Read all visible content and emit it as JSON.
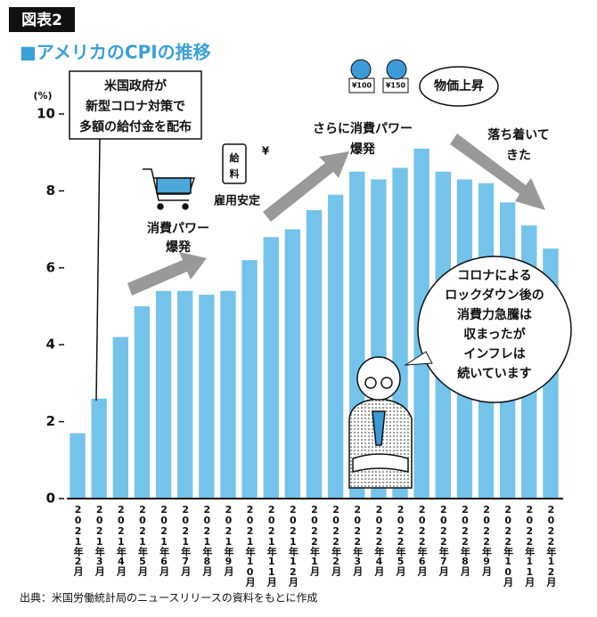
{
  "tag": "図表2",
  "chart_data": {
    "type": "bar",
    "title": "■アメリカのCPIの推移",
    "y_unit": "(%)",
    "categories": [
      "2021年2月",
      "2021年3月",
      "2021年4月",
      "2021年5月",
      "2021年6月",
      "2021年7月",
      "2021年8月",
      "2021年9月",
      "2021年10月",
      "2021年11月",
      "2021年12月",
      "2022年1月",
      "2022年2月",
      "2022年3月",
      "2022年4月",
      "2022年5月",
      "2022年6月",
      "2022年7月",
      "2022年8月",
      "2022年9月",
      "2022年10月",
      "2022年11月",
      "2022年12月"
    ],
    "values": [
      1.7,
      2.6,
      4.2,
      5.0,
      5.4,
      5.4,
      5.3,
      5.4,
      6.2,
      6.8,
      7.0,
      7.5,
      7.9,
      8.5,
      8.3,
      8.6,
      9.1,
      8.5,
      8.3,
      8.2,
      7.7,
      7.1,
      6.5
    ],
    "color": "#74c3ea",
    "ylim": [
      0,
      10
    ],
    "yticks": [
      0,
      2,
      4,
      6,
      8,
      10
    ],
    "grid": false,
    "annotations": [
      [
        "米国政府が",
        "新型コロナ対策で",
        "多額の給付金を配布"
      ],
      [
        "消費パワー",
        "爆発"
      ],
      [
        "雇用安定"
      ],
      [
        "さらに消費パワー",
        "爆発"
      ],
      [
        "物価上昇"
      ],
      [
        "落ち着いて",
        "きた"
      ],
      [
        "コロナによる",
        "ロックダウン後の",
        "消費力急騰は",
        "収まったが",
        "インフレは",
        "続いています"
      ]
    ],
    "icon_labels": [
      "給",
      "料",
      "¥",
      "¥100",
      "¥150"
    ]
  },
  "source": "出典：米国労働統計局のニュースリリースの資料をもとに作成"
}
